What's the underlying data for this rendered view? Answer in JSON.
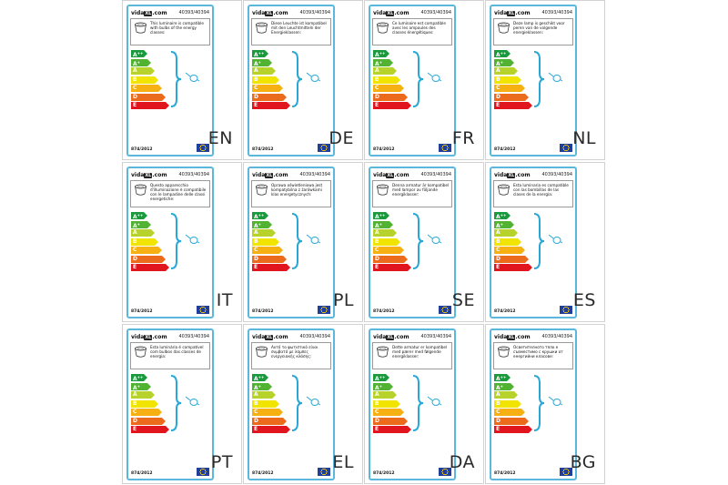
{
  "brand": {
    "prefix": "vida",
    "badge": "XL",
    "suffix": ".com"
  },
  "product_code": "40393/40394",
  "regulation": "874/2012",
  "classes": [
    {
      "letter": "A",
      "sup": "++",
      "color": "#1a9a3d"
    },
    {
      "letter": "A",
      "sup": "+",
      "color": "#52b332"
    },
    {
      "letter": "A",
      "sup": "",
      "color": "#b7d22a"
    },
    {
      "letter": "B",
      "sup": "",
      "color": "#f1e400"
    },
    {
      "letter": "C",
      "sup": "",
      "color": "#f7b011"
    },
    {
      "letter": "D",
      "sup": "",
      "color": "#ec6a1c"
    },
    {
      "letter": "E",
      "sup": "",
      "color": "#e1151e"
    }
  ],
  "colors": {
    "card_border": "#5bb8dc",
    "brace": "#29a8d8",
    "flag": "#1f3f9a"
  },
  "labels": [
    {
      "lang": "EN",
      "text": "This luminaire is compatible with bulbs of the energy classes:"
    },
    {
      "lang": "DE",
      "text": "Diese Leuchte ist kompatibel mit den Leuchtmitteln der Energieklassen:"
    },
    {
      "lang": "FR",
      "text": "Ce luminaire est compatible avec les ampoules des classes énergétiques:"
    },
    {
      "lang": "NL",
      "text": "Deze lamp is geschikt voor peren van de volgende energieklassen:"
    },
    {
      "lang": "IT",
      "text": "Questo apparecchio d'illuminazione è compatibile con le lampadine delle classi energetiche:"
    },
    {
      "lang": "PL",
      "text": "Oprawa oświetleniowa jest kompatybilna z żarówkami klas energetycznych:"
    },
    {
      "lang": "SE",
      "text": "Denna armatur är kompatibel med lampor av följande energiklasser:"
    },
    {
      "lang": "ES",
      "text": "Esta luminaria es compatible con las bombillas de las clases de la energía:"
    },
    {
      "lang": "PT",
      "text": "Esta luminária é compatível com bulbos das classes de energia:"
    },
    {
      "lang": "EL",
      "text": "Αυτό το φωτιστικό είναι συμβατό με λάμπες ενεργειακής κλάσης:"
    },
    {
      "lang": "DA",
      "text": "Dette armatur er kompatibel med pærer med følgende energiklasser:"
    },
    {
      "lang": "BG",
      "text": "Осветителното тяло е съвместимо с крушки от енергийни класове:"
    }
  ]
}
